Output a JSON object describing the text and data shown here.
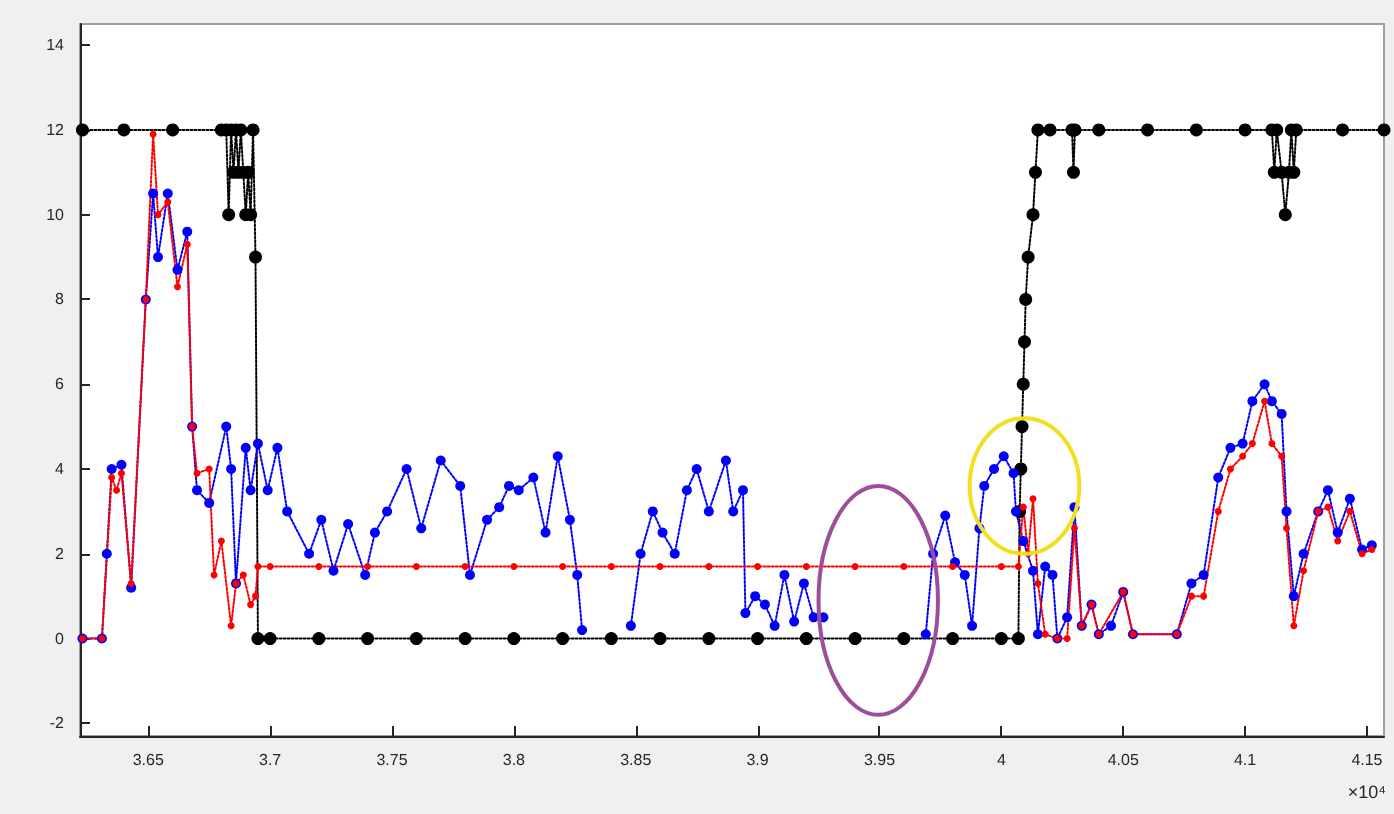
{
  "chart_data": {
    "type": "line",
    "marker": "circle",
    "line_style": "dotted",
    "grid": false,
    "xlim": [
      3.622,
      4.157
    ],
    "xticks": [
      3.65,
      3.7,
      3.75,
      3.8,
      3.85,
      3.9,
      3.95,
      4,
      4.05,
      4.1,
      4.15
    ],
    "ylim": [
      -2.3,
      14.5
    ],
    "yticks": [
      -2,
      0,
      2,
      4,
      6,
      8,
      10,
      12,
      14
    ],
    "annotations": [
      "×10⁴"
    ],
    "series": [
      {
        "color": "#000000",
        "x": [
          3.623,
          3.64,
          3.66,
          3.68,
          3.682,
          3.683,
          3.684,
          3.685,
          3.686,
          3.687,
          3.688,
          3.689,
          3.69,
          3.691,
          3.692,
          3.693,
          3.694,
          3.695,
          3.7,
          3.72,
          3.74,
          3.76,
          3.78,
          3.8,
          3.82,
          3.84,
          3.86,
          3.88,
          3.9,
          3.92,
          3.94,
          3.96,
          3.98,
          4.0,
          4.007,
          4.0075,
          4.008,
          4.0085,
          4.009,
          4.0095,
          4.01,
          4.011,
          4.013,
          4.014,
          4.015,
          4.02,
          4.029,
          4.0296,
          4.0302,
          4.04,
          4.06,
          4.08,
          4.1,
          4.111,
          4.112,
          4.113,
          4.115,
          4.1165,
          4.118,
          4.119,
          4.12,
          4.121,
          4.14,
          4.157
        ],
        "values": [
          12,
          12,
          12,
          12,
          12,
          10,
          12,
          11,
          12,
          11,
          12,
          11,
          10,
          11,
          10,
          12,
          9,
          0,
          0,
          0,
          0,
          0,
          0,
          0,
          0,
          0,
          0,
          0,
          0,
          0,
          0,
          0,
          0,
          0,
          0,
          3,
          4,
          5,
          6,
          7,
          8,
          9,
          10,
          11,
          12,
          12,
          12,
          11,
          12,
          12,
          12,
          12,
          12,
          12,
          11,
          12,
          11,
          10,
          11,
          12,
          11,
          12,
          12,
          12
        ]
      },
      {
        "color": "#0000ff",
        "x": [
          3.623,
          3.631,
          3.633,
          3.635,
          3.639,
          3.643,
          3.649,
          3.652,
          3.654,
          3.658,
          3.662,
          3.666,
          3.668,
          3.67,
          3.675,
          3.682,
          3.684,
          3.686,
          3.69,
          3.692,
          3.695,
          3.699,
          3.703,
          3.707,
          3.716,
          3.721,
          3.726,
          3.732,
          3.739,
          3.743,
          3.748,
          3.756,
          3.762,
          3.77,
          3.778,
          3.782,
          3.789,
          3.794,
          3.798,
          3.802,
          3.808,
          3.813,
          3.818,
          3.823,
          3.826,
          3.828,
          3.838,
          3.848,
          3.852,
          3.857,
          3.861,
          3.866,
          3.871,
          3.875,
          3.88,
          3.887,
          3.89,
          3.894,
          3.895,
          3.899,
          3.903,
          3.907,
          3.911,
          3.915,
          3.919,
          3.923,
          3.927,
          3.95,
          3.969,
          3.972,
          3.977,
          3.981,
          3.985,
          3.988,
          3.991,
          3.993,
          3.997,
          4.001,
          4.005,
          4.006,
          4.009,
          4.013,
          4.015,
          4.018,
          4.021,
          4.023,
          4.027,
          4.03,
          4.033,
          4.037,
          4.04,
          4.045,
          4.05,
          4.054,
          4.072,
          4.078,
          4.083,
          4.089,
          4.094,
          4.099,
          4.103,
          4.108,
          4.111,
          4.115,
          4.117,
          4.12,
          4.124,
          4.13,
          4.134,
          4.138,
          4.143,
          4.148,
          4.152
        ],
        "values": [
          0,
          0,
          2.0,
          4.0,
          4.1,
          1.2,
          8.0,
          10.5,
          9.0,
          10.5,
          8.7,
          9.6,
          5.0,
          3.5,
          3.2,
          5.0,
          4.0,
          1.3,
          4.5,
          3.5,
          4.6,
          3.5,
          4.5,
          3.0,
          2.0,
          2.8,
          1.6,
          2.7,
          1.5,
          2.5,
          3.0,
          4.0,
          2.6,
          4.2,
          3.6,
          1.5,
          2.8,
          3.1,
          3.6,
          3.5,
          3.8,
          2.5,
          4.3,
          2.8,
          1.5,
          0.2,
          null,
          0.3,
          2.0,
          3.0,
          2.5,
          2.0,
          3.5,
          4.0,
          3.0,
          4.2,
          3.0,
          3.5,
          0.6,
          1.0,
          0.8,
          0.3,
          1.5,
          0.4,
          1.3,
          0.5,
          0.5,
          null,
          0.1,
          2.0,
          2.9,
          1.8,
          1.5,
          0.3,
          2.6,
          3.6,
          4.0,
          4.3,
          3.9,
          3.0,
          2.3,
          1.6,
          0.1,
          1.7,
          1.5,
          0,
          0.5,
          3.1,
          0.3,
          0.8,
          0.1,
          0.3,
          1.1,
          0.1,
          0.1,
          1.3,
          1.5,
          3.8,
          4.5,
          4.6,
          5.6,
          6.0,
          5.6,
          5.3,
          3.0,
          1.0,
          2.0,
          3.0,
          3.5,
          2.5,
          3.3,
          2.1,
          2.2
        ]
      },
      {
        "color": "#ff0000",
        "x": [
          3.623,
          3.631,
          3.635,
          3.637,
          3.639,
          3.643,
          3.649,
          3.652,
          3.654,
          3.658,
          3.662,
          3.666,
          3.668,
          3.67,
          3.675,
          3.677,
          3.68,
          3.684,
          3.686,
          3.689,
          3.692,
          3.694,
          3.695,
          3.7,
          3.72,
          3.74,
          3.76,
          3.78,
          3.8,
          3.82,
          3.84,
          3.86,
          3.88,
          3.9,
          3.92,
          3.94,
          3.96,
          3.98,
          4.0,
          4.007,
          4.009,
          4.011,
          4.013,
          4.015,
          4.018,
          4.023,
          4.027,
          4.03,
          4.033,
          4.037,
          4.04,
          4.05,
          4.054,
          4.072,
          4.078,
          4.083,
          4.089,
          4.094,
          4.099,
          4.103,
          4.108,
          4.111,
          4.115,
          4.117,
          4.12,
          4.124,
          4.13,
          4.134,
          4.138,
          4.143,
          4.148,
          4.152
        ],
        "values": [
          0,
          0,
          3.8,
          3.5,
          3.9,
          1.3,
          8.0,
          11.9,
          10.0,
          10.3,
          8.3,
          9.3,
          5.0,
          3.9,
          4.0,
          1.5,
          2.3,
          0.3,
          1.3,
          1.5,
          0.8,
          1.0,
          1.7,
          1.7,
          1.7,
          1.7,
          1.7,
          1.7,
          1.7,
          1.7,
          1.7,
          1.7,
          1.7,
          1.7,
          1.7,
          1.7,
          1.7,
          1.7,
          1.7,
          1.7,
          3.1,
          2.0,
          3.3,
          1.3,
          0.1,
          0,
          0,
          2.6,
          0.3,
          0.8,
          0.1,
          1.1,
          0.1,
          0.1,
          1.0,
          1.0,
          3.0,
          4.0,
          4.3,
          4.6,
          5.6,
          4.6,
          4.3,
          2.6,
          0.3,
          1.6,
          3.0,
          3.1,
          2.3,
          3.0,
          2.0,
          2.1
        ]
      }
    ]
  }
}
